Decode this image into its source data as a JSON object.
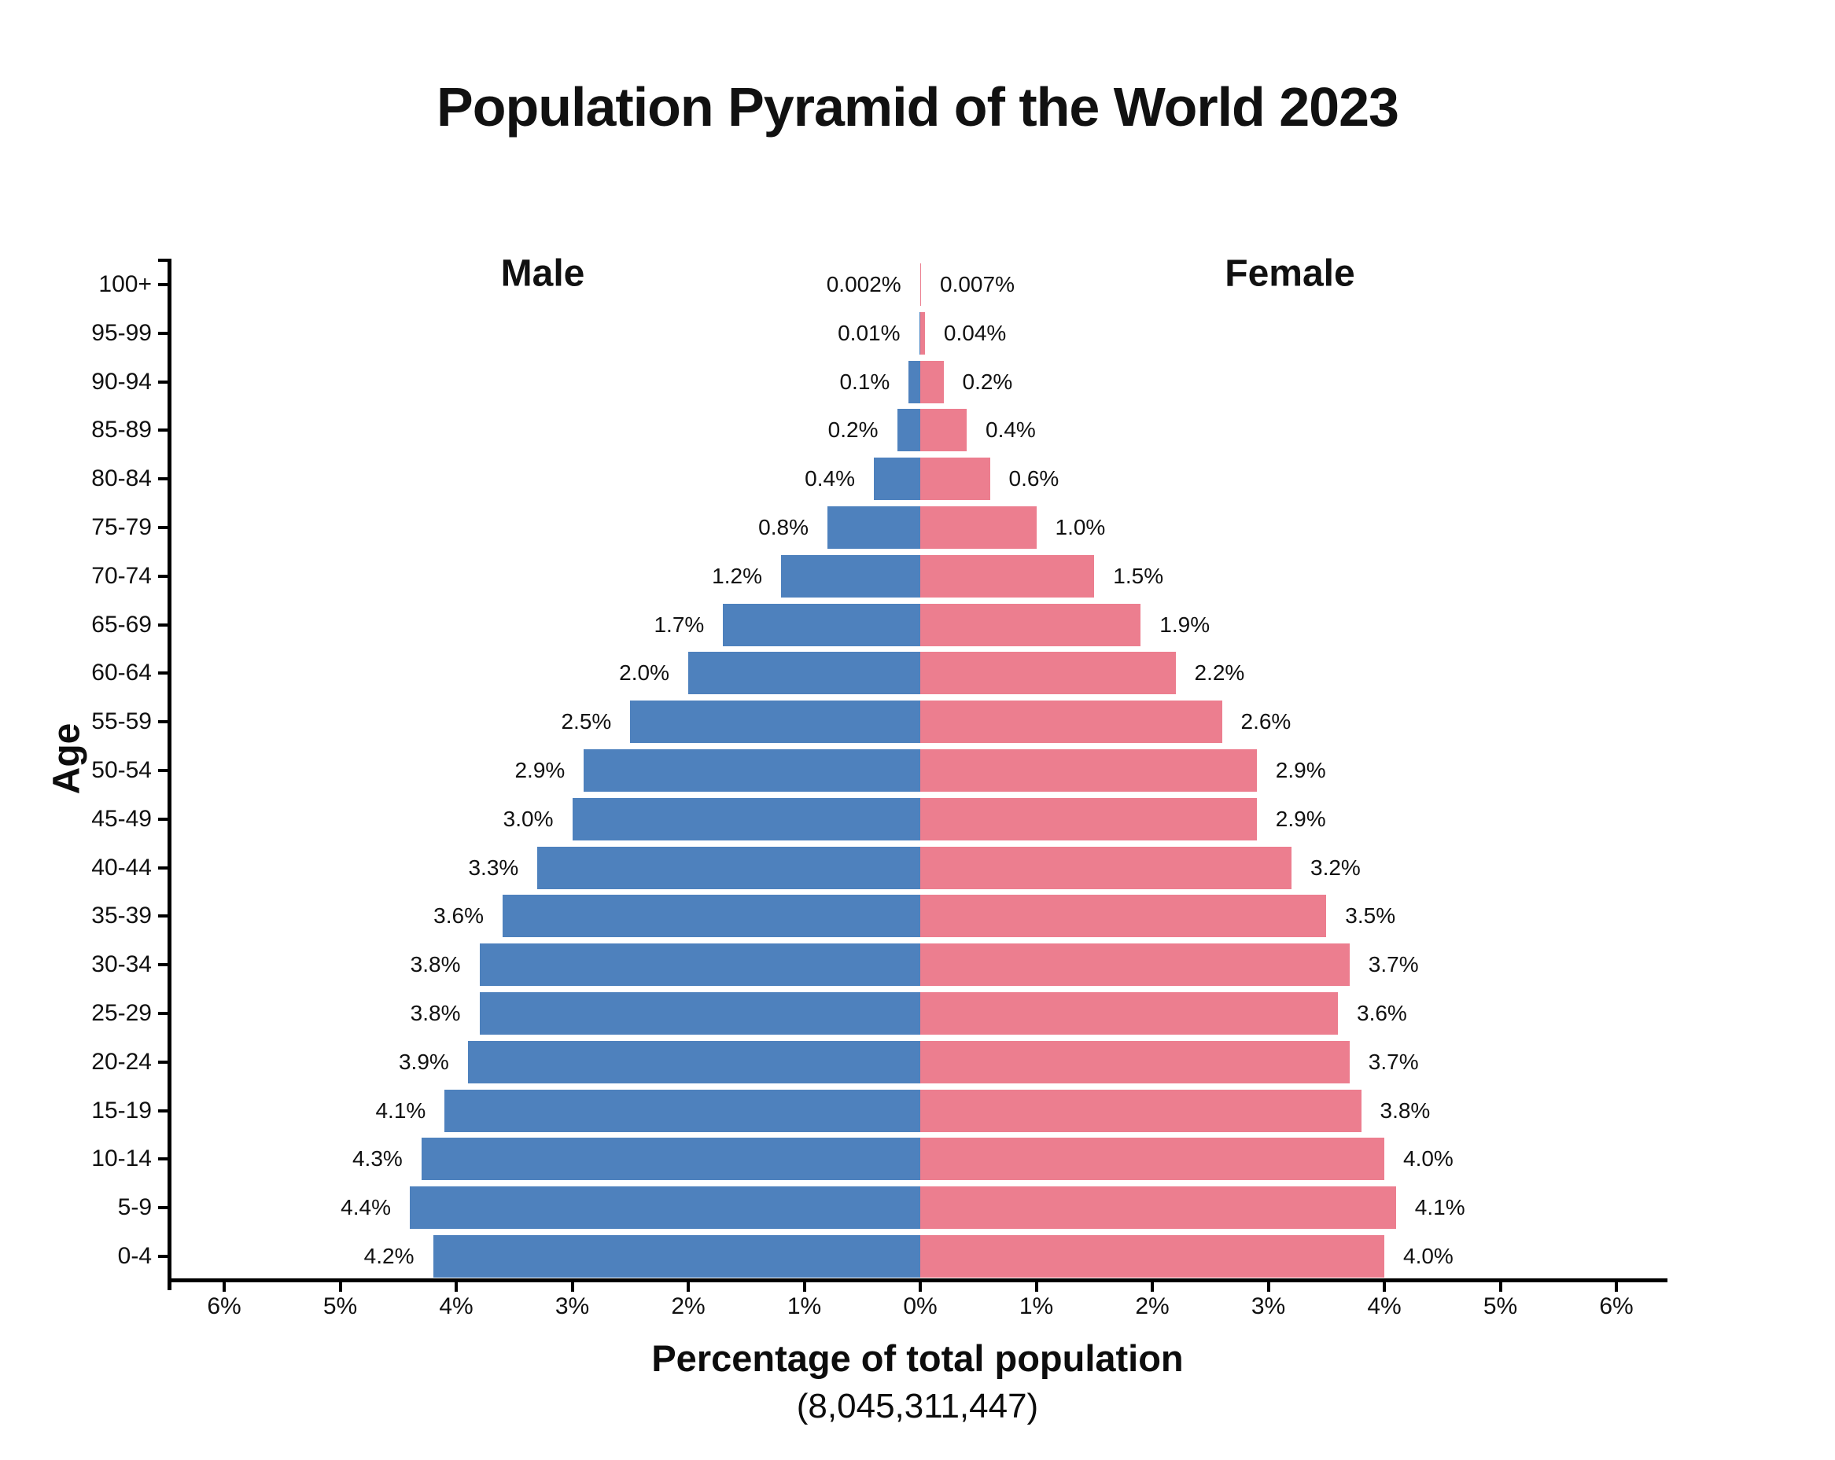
{
  "colors": {
    "male_bar": "#4E81BD",
    "female_bar": "#EC7E8F",
    "axis": "#000000",
    "text": "#111111",
    "background": "#FFFFFF"
  },
  "chart_data": {
    "type": "bar",
    "variant": "population_pyramid",
    "title": "Population Pyramid of the World 2023",
    "xlabel": "Percentage of total population",
    "xlabel_subtitle": "(8,045,311,447)",
    "ylabel": "Age",
    "grid": false,
    "x_axis_range_pct": [
      -6.5,
      6.5
    ],
    "legend_position": "headers-above-plot",
    "categories": [
      "100+",
      "95-99",
      "90-94",
      "85-89",
      "80-84",
      "75-79",
      "70-74",
      "65-69",
      "60-64",
      "55-59",
      "50-54",
      "45-49",
      "40-44",
      "35-39",
      "30-34",
      "25-29",
      "20-24",
      "15-19",
      "10-14",
      "5-9",
      "0-4"
    ],
    "series": [
      {
        "name": "Male",
        "side": "left",
        "color": "#4E81BD",
        "values": [
          0.002,
          0.01,
          0.1,
          0.2,
          0.4,
          0.8,
          1.2,
          1.7,
          2.0,
          2.5,
          2.9,
          3.0,
          3.3,
          3.6,
          3.8,
          3.8,
          3.9,
          4.1,
          4.3,
          4.4,
          4.2
        ],
        "labels": [
          "0.002%",
          "0.01%",
          "0.1%",
          "0.2%",
          "0.4%",
          "0.8%",
          "1.2%",
          "1.7%",
          "2.0%",
          "2.5%",
          "2.9%",
          "3.0%",
          "3.3%",
          "3.6%",
          "3.8%",
          "3.8%",
          "3.9%",
          "4.1%",
          "4.3%",
          "4.4%",
          "4.2%"
        ]
      },
      {
        "name": "Female",
        "side": "right",
        "color": "#EC7E8F",
        "values": [
          0.007,
          0.04,
          0.2,
          0.4,
          0.6,
          1.0,
          1.5,
          1.9,
          2.2,
          2.6,
          2.9,
          2.9,
          3.2,
          3.5,
          3.7,
          3.6,
          3.7,
          3.8,
          4.0,
          4.1,
          4.0
        ],
        "labels": [
          "0.007%",
          "0.04%",
          "0.2%",
          "0.4%",
          "0.6%",
          "1.0%",
          "1.5%",
          "1.9%",
          "2.2%",
          "2.6%",
          "2.9%",
          "2.9%",
          "3.2%",
          "3.5%",
          "3.7%",
          "3.6%",
          "3.7%",
          "3.8%",
          "4.0%",
          "4.1%",
          "4.0%"
        ]
      }
    ],
    "x_ticks": [
      {
        "label": "6%",
        "value": -6
      },
      {
        "label": "5%",
        "value": -5
      },
      {
        "label": "4%",
        "value": -4
      },
      {
        "label": "3%",
        "value": -3
      },
      {
        "label": "2%",
        "value": -2
      },
      {
        "label": "1%",
        "value": -1
      },
      {
        "label": "0%",
        "value": 0
      },
      {
        "label": "1%",
        "value": 1
      },
      {
        "label": "2%",
        "value": 2
      },
      {
        "label": "3%",
        "value": 3
      },
      {
        "label": "4%",
        "value": 4
      },
      {
        "label": "5%",
        "value": 5
      },
      {
        "label": "6%",
        "value": 6
      }
    ]
  }
}
